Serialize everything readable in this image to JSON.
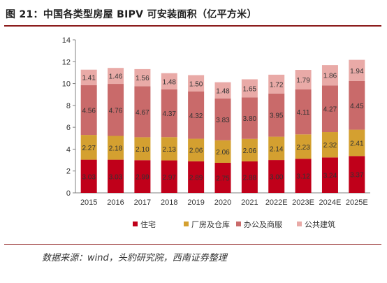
{
  "figure": {
    "title": "图 21：中国各类型房屋 BIPV 可安装面积（亿平方米）",
    "source": "数据来源：wind，头豹研究院，西南证券整理"
  },
  "colors": {
    "residential": "#c0001a",
    "factory": "#d4a030",
    "office": "#c96a6a",
    "public": "#e9aaa7",
    "rule": "#8b1a1a",
    "axis": "#808080"
  },
  "chart_data": {
    "type": "bar",
    "stacked": true,
    "categories": [
      "2015",
      "2016",
      "2017",
      "2018",
      "2019",
      "2020",
      "2021",
      "2022E",
      "2023E",
      "2024E",
      "2025E"
    ],
    "series": [
      {
        "name": "住宅",
        "color": "#c0001a",
        "values": [
          3.03,
          3.03,
          2.99,
          2.97,
          2.89,
          2.75,
          2.88,
          3.0,
          3.12,
          3.24,
          3.37
        ]
      },
      {
        "name": "厂房及仓库",
        "color": "#d4a030",
        "values": [
          2.27,
          2.18,
          2.1,
          2.13,
          2.06,
          2.06,
          2.06,
          2.14,
          2.23,
          2.32,
          2.41
        ]
      },
      {
        "name": "办公及商服",
        "color": "#c96a6a",
        "values": [
          4.56,
          4.76,
          4.67,
          4.37,
          4.32,
          3.83,
          3.8,
          3.95,
          4.11,
          4.27,
          4.45
        ]
      },
      {
        "name": "公共建筑",
        "color": "#e9aaa7",
        "values": [
          1.41,
          1.46,
          1.56,
          1.48,
          1.5,
          1.48,
          1.65,
          1.72,
          1.79,
          1.86,
          1.94
        ]
      }
    ],
    "ylim": [
      0,
      14
    ],
    "yticks": [
      0,
      2,
      4,
      6,
      8,
      10,
      12,
      14
    ],
    "value_labels": [
      [
        "3.03",
        "3.03",
        "2.99",
        "2.97",
        "2.89",
        "2.75",
        "2.88",
        "3.00",
        "3.12",
        "3.24",
        "3.37"
      ],
      [
        "2.27",
        "2.18",
        "2.10",
        "2.13",
        "2.06",
        "2.06",
        "2.06",
        "2.14",
        "2.23",
        "2.32",
        "2.41"
      ],
      [
        "4.56",
        "4.76",
        "4.67",
        "4.37",
        "4.32",
        "3.83",
        "3.80",
        "3.95",
        "4.11",
        "4.27",
        "4.45"
      ],
      [
        "1.41",
        "1.46",
        "1.56",
        "1.48",
        "1.50",
        "1.48",
        "1.65",
        "1.72",
        "1.79",
        "1.86",
        "1.94"
      ]
    ],
    "legend_position": "bottom",
    "grid": false
  }
}
